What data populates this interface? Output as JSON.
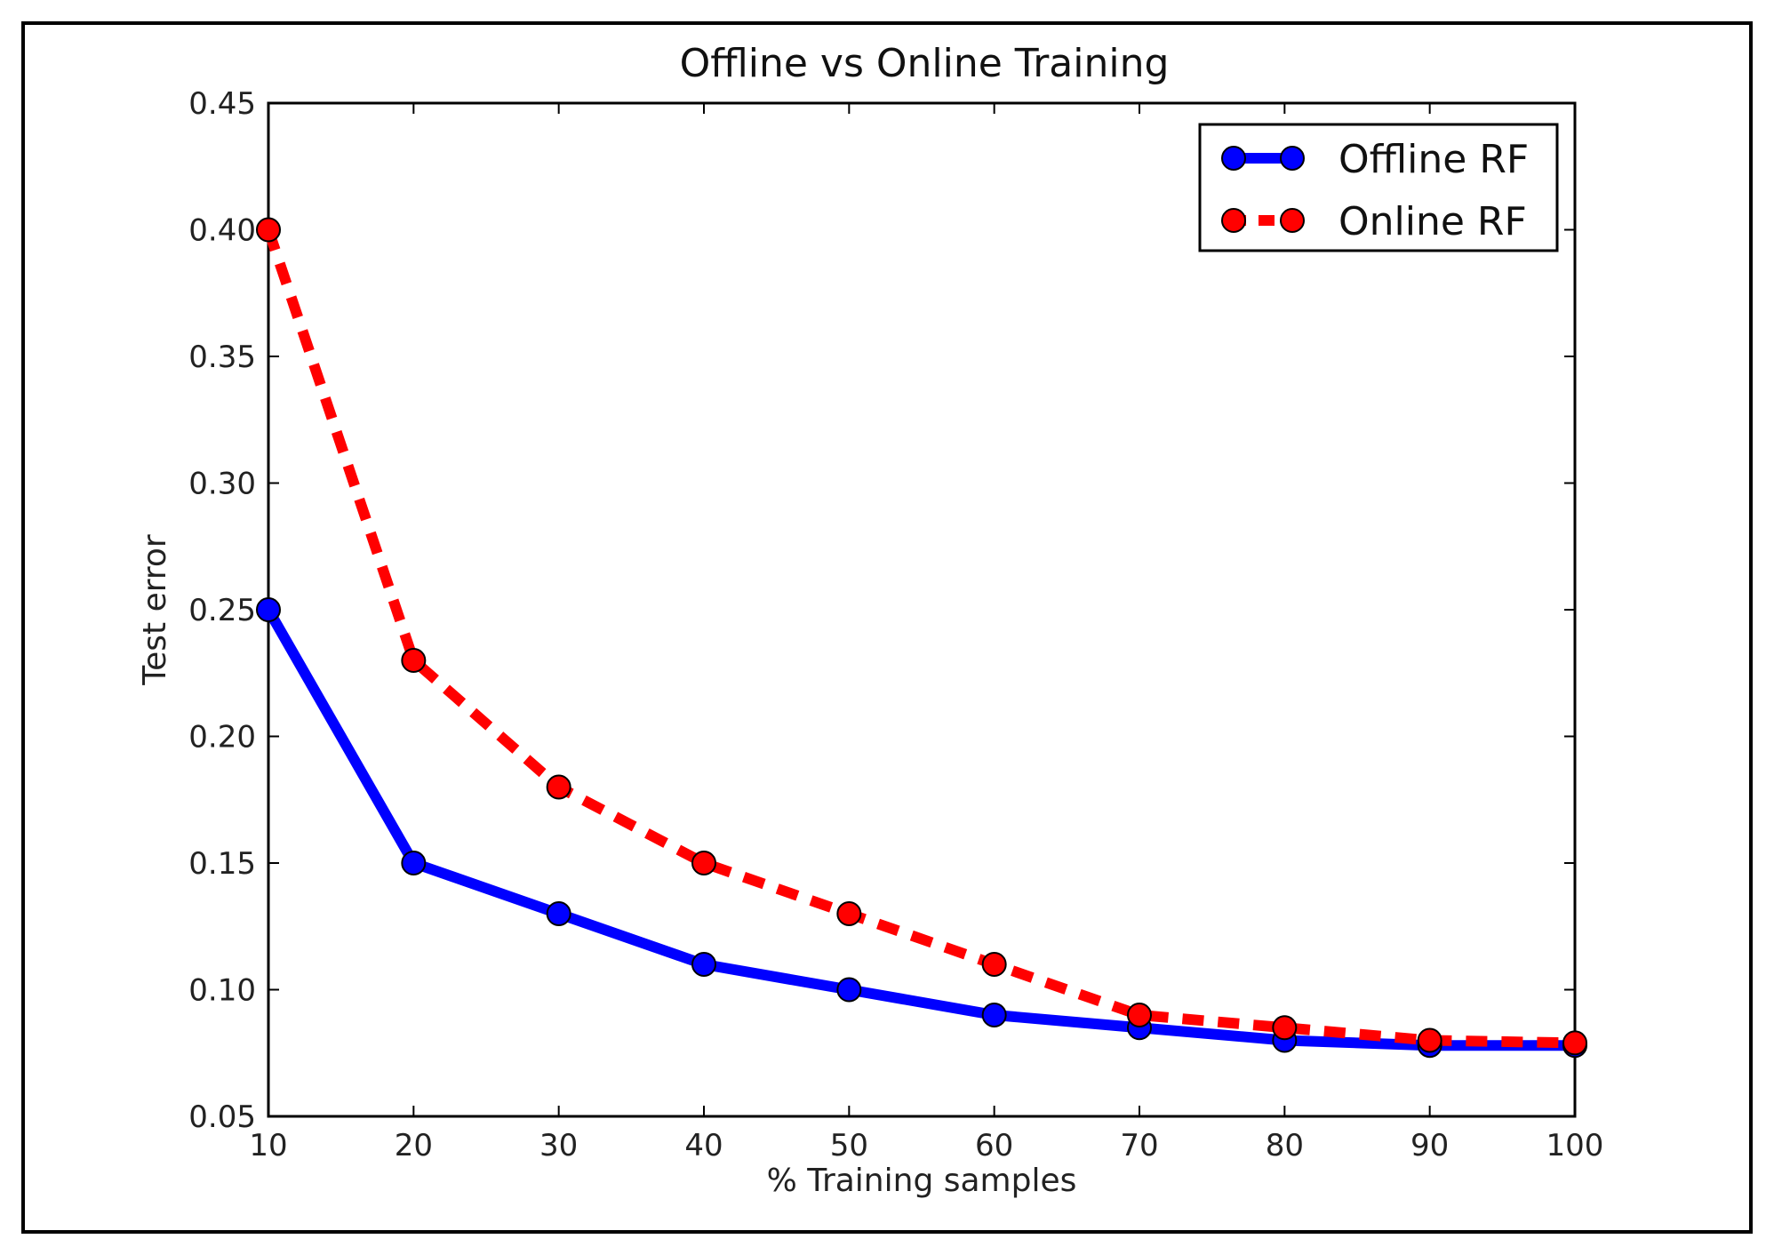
{
  "chart_data": {
    "type": "line",
    "title": "Offline vs Online Training",
    "xlabel": "% Training samples",
    "ylabel": "Test error",
    "xlim": [
      10,
      100
    ],
    "ylim": [
      0.05,
      0.45
    ],
    "x_ticks": [
      "10",
      "20",
      "30",
      "40",
      "50",
      "60",
      "70",
      "80",
      "90",
      "100"
    ],
    "y_ticks": [
      "0.05",
      "0.10",
      "0.15",
      "0.20",
      "0.25",
      "0.30",
      "0.35",
      "0.40",
      "0.45"
    ],
    "x": [
      10,
      20,
      30,
      40,
      50,
      60,
      70,
      80,
      90,
      100
    ],
    "grid": false,
    "legend_position": "top-right",
    "series": [
      {
        "name": "Offline RF",
        "values": [
          0.25,
          0.15,
          0.13,
          0.11,
          0.1,
          0.09,
          0.085,
          0.08,
          0.078,
          0.078
        ],
        "color": "#0000ff",
        "line_style": "solid",
        "marker_color": "#0000ff"
      },
      {
        "name": "Online RF",
        "values": [
          0.4,
          0.23,
          0.18,
          0.15,
          0.13,
          0.11,
          0.09,
          0.085,
          0.08,
          0.079
        ],
        "color": "#ff0000",
        "line_style": "dashed",
        "marker_color": "#ff0000"
      }
    ]
  }
}
